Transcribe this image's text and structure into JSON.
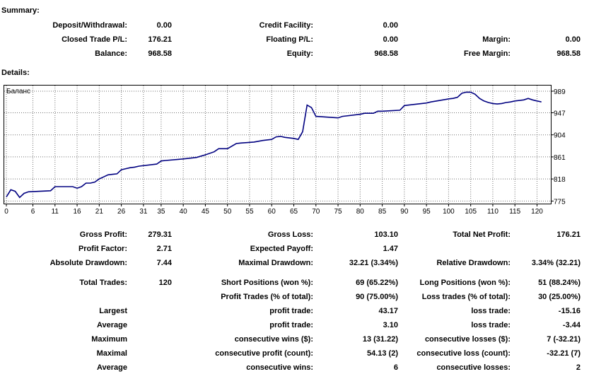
{
  "summary": {
    "heading": "Summary:",
    "rows": [
      [
        {
          "label": "Deposit/Withdrawal:",
          "value": "0.00"
        },
        {
          "label": "Credit Facility:",
          "value": "0.00"
        },
        {
          "label": "",
          "value": ""
        }
      ],
      [
        {
          "label": "Closed Trade P/L:",
          "value": "176.21"
        },
        {
          "label": "Floating P/L:",
          "value": "0.00"
        },
        {
          "label": "Margin:",
          "value": "0.00"
        }
      ],
      [
        {
          "label": "Balance:",
          "value": "968.58"
        },
        {
          "label": "Equity:",
          "value": "968.58"
        },
        {
          "label": "Free Margin:",
          "value": "968.58"
        }
      ]
    ]
  },
  "details": {
    "heading": "Details:"
  },
  "chart_data": {
    "type": "line",
    "title": "Баланс",
    "xlabel": "",
    "ylabel": "",
    "xlim": [
      0,
      122
    ],
    "ylim": [
      770,
      1000
    ],
    "x_ticks": [
      0,
      6,
      11,
      16,
      21,
      26,
      31,
      35,
      40,
      45,
      50,
      55,
      60,
      65,
      70,
      75,
      80,
      85,
      90,
      95,
      100,
      105,
      110,
      115,
      120
    ],
    "y_ticks": [
      775,
      818,
      861,
      904,
      947,
      989
    ],
    "line_color": "#000080",
    "grid": true,
    "series": [
      {
        "name": "",
        "x": [
          0,
          1,
          2,
          3,
          4,
          5,
          10,
          11,
          15,
          16,
          17,
          18,
          19,
          20,
          21,
          22,
          23,
          24,
          25,
          26,
          27,
          28,
          29,
          30,
          34,
          35,
          36,
          40,
          43,
          45,
          47,
          48,
          50,
          52,
          53,
          56,
          58,
          60,
          61,
          62,
          63,
          64,
          65,
          66,
          67,
          68,
          69,
          70,
          75,
          76,
          80,
          81,
          83,
          84,
          85,
          89,
          90,
          91,
          95,
          96,
          100,
          101,
          102,
          103,
          104,
          105,
          106,
          107,
          108,
          109,
          110,
          111,
          112,
          113,
          114,
          115,
          116,
          117,
          118,
          119,
          120,
          121
        ],
        "y": [
          783,
          797,
          794,
          782,
          790,
          793,
          795,
          803,
          803,
          800,
          803,
          810,
          810,
          812,
          818,
          822,
          826,
          827,
          828,
          836,
          838,
          840,
          841,
          843,
          847,
          853,
          854,
          857,
          860,
          865,
          871,
          877,
          877,
          887,
          888,
          890,
          893,
          895,
          900,
          901,
          899,
          898,
          897,
          895,
          910,
          962,
          957,
          940,
          937,
          940,
          944,
          946,
          946,
          950,
          950,
          952,
          961,
          962,
          966,
          968,
          974,
          975,
          977,
          985,
          987,
          987,
          983,
          975,
          970,
          967,
          965,
          964,
          965,
          967,
          968,
          970,
          971,
          972,
          975,
          972,
          970,
          968
        ]
      }
    ]
  },
  "stats": [
    {
      "l1": "Gross Profit:",
      "v1": "279.31",
      "l2": "Gross Loss:",
      "v2": "103.10",
      "l3": "Total Net Profit:",
      "v3": "176.21"
    },
    {
      "l1": "Profit Factor:",
      "v1": "2.71",
      "l2": "Expected Payoff:",
      "v2": "1.47",
      "l3": "",
      "v3": ""
    },
    {
      "l1": "Absolute Drawdown:",
      "v1": "7.44",
      "l2": "Maximal Drawdown:",
      "v2": "32.21 (3.34%)",
      "l3": "Relative Drawdown:",
      "v3": "3.34% (32.21)"
    },
    {
      "l1": "Total Trades:",
      "v1": "120",
      "l2": "Short Positions (won %):",
      "v2": "69 (65.22%)",
      "l3": "Long Positions (won %):",
      "v3": "51 (88.24%)"
    },
    {
      "l1": "",
      "v1": "",
      "l2": "Profit Trades (% of total):",
      "v2": "90 (75.00%)",
      "l3": "Loss trades (% of total):",
      "v3": "30 (25.00%)"
    },
    {
      "l1": "Largest",
      "v1": "",
      "l2": "profit trade:",
      "v2": "43.17",
      "l3": "loss trade:",
      "v3": "-15.16"
    },
    {
      "l1": "Average",
      "v1": "",
      "l2": "profit trade:",
      "v2": "3.10",
      "l3": "loss trade:",
      "v3": "-3.44"
    },
    {
      "l1": "Maximum",
      "v1": "",
      "l2": "consecutive wins ($):",
      "v2": "13 (31.22)",
      "l3": "consecutive losses ($):",
      "v3": "7 (-32.21)"
    },
    {
      "l1": "Maximal",
      "v1": "",
      "l2": "consecutive profit (count):",
      "v2": "54.13 (2)",
      "l3": "consecutive loss (count):",
      "v3": "-32.21 (7)"
    },
    {
      "l1": "Average",
      "v1": "",
      "l2": "consecutive wins:",
      "v2": "6",
      "l3": "consecutive losses:",
      "v3": "2"
    }
  ]
}
